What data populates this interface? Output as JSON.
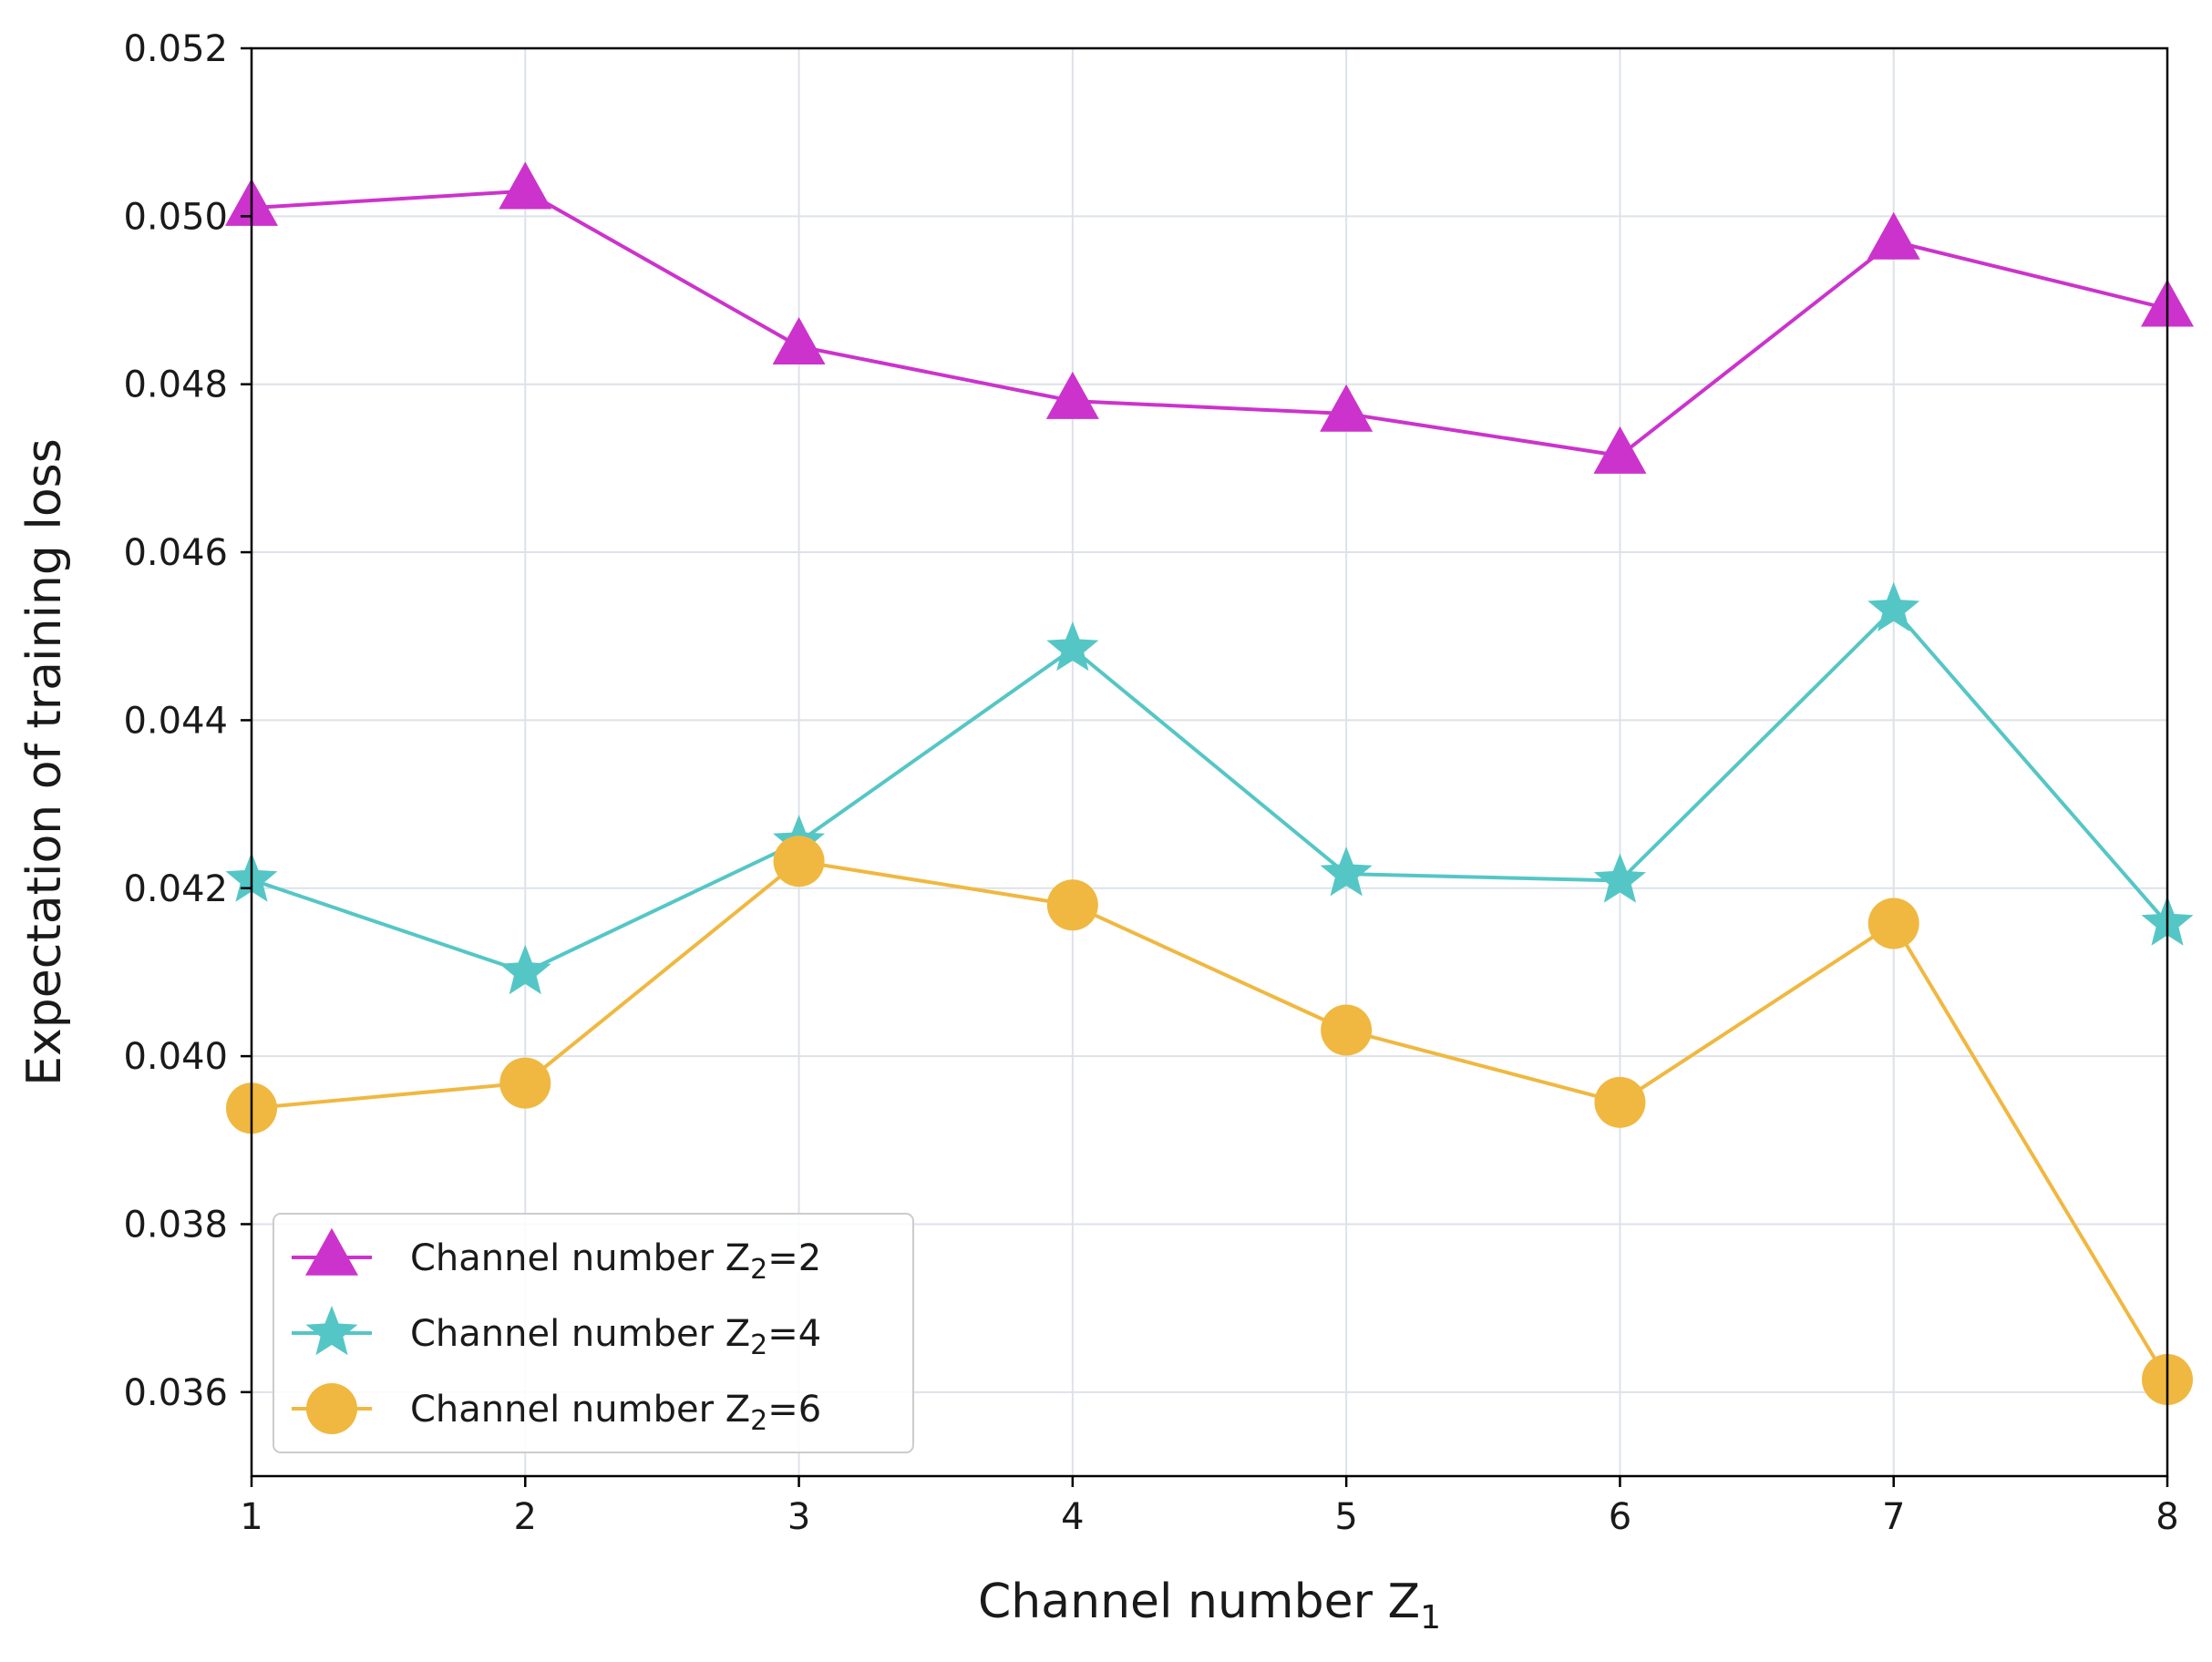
{
  "chart_data": {
    "type": "line",
    "title": "",
    "xlabel": "Channel number Z",
    "xlabel_sub": "1",
    "ylabel": "Expectation of training loss",
    "x": [
      1,
      2,
      3,
      4,
      5,
      6,
      7,
      8
    ],
    "xlim": [
      1,
      8
    ],
    "ylim": [
      0.035,
      0.052
    ],
    "xticks": [
      1,
      2,
      3,
      4,
      5,
      6,
      7,
      8
    ],
    "xtick_labels": [
      "1",
      "2",
      "3",
      "4",
      "5",
      "6",
      "7",
      "8"
    ],
    "yticks": [
      0.036,
      0.038,
      0.04,
      0.042,
      0.044,
      0.046,
      0.048,
      0.05,
      0.052
    ],
    "ytick_labels": [
      "0.036",
      "0.038",
      "0.040",
      "0.042",
      "0.044",
      "0.046",
      "0.048",
      "0.050",
      "0.052"
    ],
    "grid": true,
    "legend_position": "lower-left",
    "series": [
      {
        "name": "Channel number Z2=2",
        "label_prefix": "Channel number Z",
        "label_sub": "2",
        "label_suffix": "=2",
        "marker": "triangle",
        "color": "#cc33cc",
        "values": [
          0.0501,
          0.0503,
          0.04845,
          0.0478,
          0.04765,
          0.04715,
          0.0497,
          0.0489
        ]
      },
      {
        "name": "Channel number Z2=4",
        "label_prefix": "Channel number Z",
        "label_sub": "2",
        "label_suffix": "=4",
        "marker": "star",
        "color": "#55c6c6",
        "values": [
          0.0421,
          0.041,
          0.04255,
          0.04485,
          0.04217,
          0.04209,
          0.04532,
          0.04158
        ]
      },
      {
        "name": "Channel number Z2=6",
        "label_prefix": "Channel number Z",
        "label_sub": "2",
        "label_suffix": "=6",
        "marker": "circle",
        "color": "#f0b840",
        "values": [
          0.03938,
          0.03968,
          0.04232,
          0.0418,
          0.04031,
          0.03945,
          0.04158,
          0.03615
        ]
      }
    ]
  }
}
